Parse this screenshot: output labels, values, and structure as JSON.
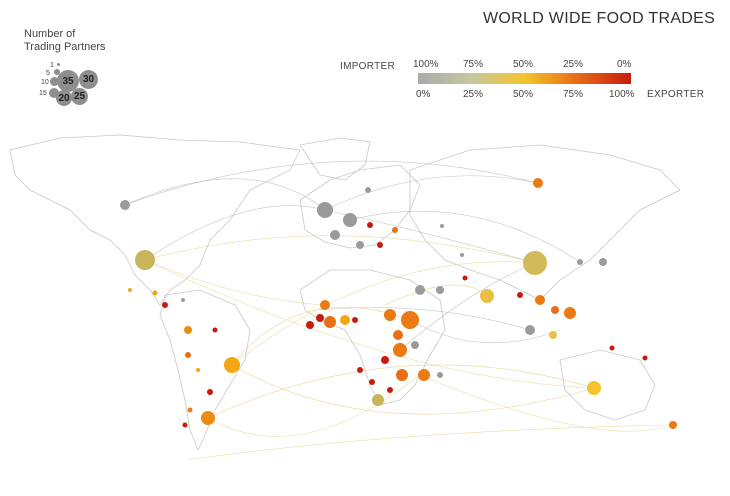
{
  "title": "WORLD WIDE FOOD TRADES",
  "size_legend": {
    "label": "Number of\nTrading Partners",
    "values": [
      "1",
      "5",
      "10",
      "15",
      "20",
      "25",
      "30",
      "35"
    ]
  },
  "color_legend": {
    "importer_label": "IMPORTER",
    "exporter_label": "EXPORTER",
    "importer_ticks": [
      "100%",
      "75%",
      "50%",
      "25%",
      "0%"
    ],
    "exporter_ticks": [
      "0%",
      "25%",
      "50%",
      "75%",
      "100%"
    ],
    "colors": [
      "#a9a9a9",
      "#c8c8a0",
      "#f3c52a",
      "#e86b15",
      "#c81b10"
    ]
  }
}
